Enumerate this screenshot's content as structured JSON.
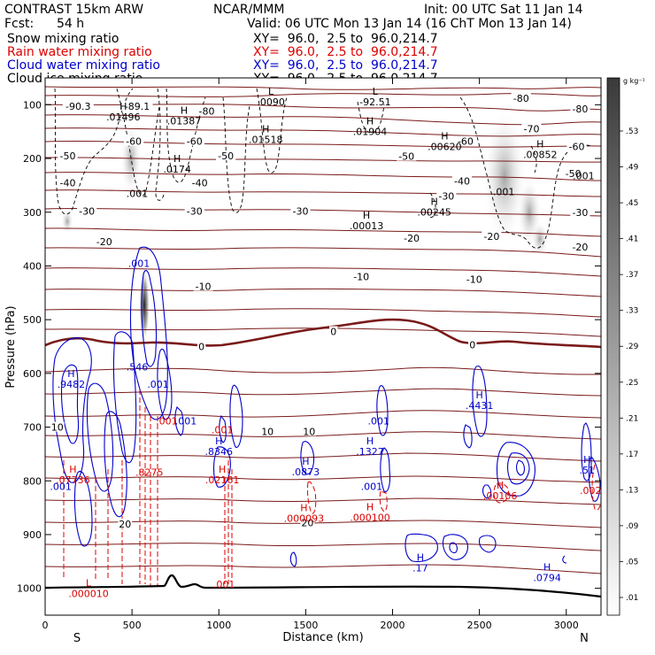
{
  "header": {
    "model": "CONTRAST 15km ARW",
    "org": "NCAR/MMM",
    "init": "Init: 00 UTC Sat 11 Jan 14",
    "fcst_label": "Fcst:",
    "fcst_value": "54 h",
    "valid": "Valid: 06 UTC Mon 13 Jan 14 (16 ChT Mon 13 Jan 14)"
  },
  "fields": [
    {
      "name": "Snow mixing ratio",
      "xy": "XY=  96.0,  2.5 to  96.0,214.7",
      "color": "#000000"
    },
    {
      "name": "Rain water mixing ratio",
      "xy": "XY=  96.0,  2.5 to  96.0,214.7",
      "color": "#dd0000"
    },
    {
      "name": "Cloud water mixing ratio",
      "xy": "XY=  96.0,  2.5 to  96.0,214.7",
      "color": "#0000cc"
    },
    {
      "name": "Cloud ice mixing ratio",
      "xy": "XY=  96.0,  2.5 to  96.0,214.7",
      "color": "#000000"
    }
  ],
  "colorbar": {
    "unit": "g kg⁻¹",
    "ticks": [
      ".01",
      ".05",
      ".09",
      ".13",
      ".17",
      ".21",
      ".25",
      ".29",
      ".33",
      ".37",
      ".41",
      ".45",
      ".49",
      ".53"
    ]
  },
  "chart_data": {
    "type": "contour",
    "xlabel": "Distance (km)",
    "ylabel": "Pressure (hPa)",
    "xlim": [
      0,
      3200
    ],
    "ylim": [
      1050,
      50
    ],
    "x_ticks": [
      "0",
      "500",
      "1000",
      "1500",
      "2000",
      "2500",
      "3000"
    ],
    "y_ticks": [
      "100",
      "200",
      "300",
      "400",
      "500",
      "600",
      "700",
      "800",
      "900",
      "1000"
    ],
    "x_ends": {
      "left": "S",
      "right": "N"
    },
    "temperature_labels": [
      {
        "text": "-90.3",
        "x": 190,
        "p": 103
      },
      {
        "text": "-89.1",
        "x": 530,
        "p": 103
      },
      {
        "text": "-80",
        "x": 930,
        "p": 112
      },
      {
        "text": "-80",
        "x": 2740,
        "p": 88
      },
      {
        "text": "-80",
        "x": 3080,
        "p": 108
      },
      {
        "text": "-70",
        "x": 2800,
        "p": 145
      },
      {
        "text": "-60",
        "x": 510,
        "p": 168
      },
      {
        "text": "-60",
        "x": 860,
        "p": 168
      },
      {
        "text": "-60",
        "x": 2420,
        "p": 168
      },
      {
        "text": "-60",
        "x": 3060,
        "p": 178
      },
      {
        "text": "-50",
        "x": 130,
        "p": 195
      },
      {
        "text": "-50",
        "x": 1040,
        "p": 195
      },
      {
        "text": "-50",
        "x": 2080,
        "p": 196
      },
      {
        "text": "-50",
        "x": 3040,
        "p": 228
      },
      {
        "text": "-40",
        "x": 130,
        "p": 245
      },
      {
        "text": "-40",
        "x": 890,
        "p": 245
      },
      {
        "text": "-40",
        "x": 2400,
        "p": 242
      },
      {
        "text": "-30",
        "x": 240,
        "p": 298
      },
      {
        "text": "-30",
        "x": 860,
        "p": 298
      },
      {
        "text": "-30",
        "x": 1470,
        "p": 298
      },
      {
        "text": "-30",
        "x": 2310,
        "p": 270
      },
      {
        "text": "-30",
        "x": 3080,
        "p": 300
      },
      {
        "text": "-20",
        "x": 340,
        "p": 355
      },
      {
        "text": "-20",
        "x": 2110,
        "p": 348
      },
      {
        "text": "-20",
        "x": 2570,
        "p": 345
      },
      {
        "text": "-20",
        "x": 3080,
        "p": 365
      },
      {
        "text": "-10",
        "x": 910,
        "p": 438
      },
      {
        "text": "-10",
        "x": 1820,
        "p": 420
      },
      {
        "text": "-10",
        "x": 2470,
        "p": 425
      },
      {
        "text": "0",
        "x": 900,
        "p": 550
      },
      {
        "text": "0",
        "x": 1660,
        "p": 522
      },
      {
        "text": "0",
        "x": 2460,
        "p": 547
      },
      {
        "text": "10",
        "x": 70,
        "p": 700
      },
      {
        "text": "10",
        "x": 1280,
        "p": 708
      },
      {
        "text": "10",
        "x": 1520,
        "p": 708
      },
      {
        "text": "20",
        "x": 460,
        "p": 880
      },
      {
        "text": "20",
        "x": 1510,
        "p": 878
      }
    ],
    "extrema": [
      {
        "type": "L",
        "x": 1300,
        "p": 85,
        "value": ".0090",
        "color": "#000000"
      },
      {
        "type": "L",
        "x": 1900,
        "p": 85,
        "value": "-92.51",
        "color": "#000000"
      },
      {
        "type": "H",
        "x": 450,
        "p": 113,
        "value": ".01496",
        "color": "#000000"
      },
      {
        "type": "H",
        "x": 800,
        "p": 120,
        "value": ".01387",
        "color": "#000000"
      },
      {
        "type": "H",
        "x": 1270,
        "p": 155,
        "value": ".01518",
        "color": "#000000"
      },
      {
        "type": "H",
        "x": 1870,
        "p": 140,
        "value": ".01904",
        "color": "#000000"
      },
      {
        "type": "H",
        "x": 2300,
        "p": 168,
        "value": ".00620",
        "color": "#000000"
      },
      {
        "type": "H",
        "x": 2850,
        "p": 183,
        "value": ".00852",
        "color": "#000000"
      },
      {
        "type": "H",
        "x": 760,
        "p": 210,
        "value": ".0174",
        "color": "#000000"
      },
      {
        "type": "H",
        "x": 2240,
        "p": 290,
        "value": ".00245",
        "color": "#000000"
      },
      {
        "type": "H",
        "x": 1850,
        "p": 315,
        "value": ".00013",
        "color": "#000000"
      },
      {
        "type": "H",
        "x": 150,
        "p": 610,
        "value": ".9482",
        "color": "#0000cc"
      },
      {
        "type": "H",
        "x": 1000,
        "p": 735,
        "value": ".8346",
        "color": "#0000cc"
      },
      {
        "type": "H",
        "x": 1500,
        "p": 773,
        "value": ".0873",
        "color": "#0000cc"
      },
      {
        "type": "H",
        "x": 1870,
        "p": 735,
        "value": ".1327",
        "color": "#0000cc"
      },
      {
        "type": "H",
        "x": 2500,
        "p": 650,
        "value": ".4431",
        "color": "#0000cc"
      },
      {
        "type": "H",
        "x": 2160,
        "p": 952,
        "value": ".17",
        "color": "#0000cc"
      },
      {
        "type": "H",
        "x": 2890,
        "p": 970,
        "value": ".0794",
        "color": "#0000cc"
      },
      {
        "type": "H",
        "x": 3120,
        "p": 770,
        "value": ".51",
        "color": "#0000cc"
      },
      {
        "type": "H",
        "x": 160,
        "p": 788,
        "value": ".07736",
        "color": "#dd0000"
      },
      {
        "type": "H",
        "x": 1020,
        "p": 788,
        "value": ".02161",
        "color": "#dd0000"
      },
      {
        "type": "H",
        "x": 1490,
        "p": 860,
        "value": ".000093",
        "color": "#dd0000"
      },
      {
        "type": "H",
        "x": 1870,
        "p": 858,
        "value": ".000100",
        "color": "#dd0000"
      },
      {
        "type": "H",
        "x": 2620,
        "p": 818,
        "value": ".00106",
        "color": "#dd0000"
      },
      {
        "type": "L",
        "x": 250,
        "p": 1000,
        "value": ".000010",
        "color": "#dd0000"
      }
    ],
    "value_labels": [
      {
        "text": ".001",
        "x": 540,
        "p": 395,
        "color": "#0000cc"
      },
      {
        "text": ".546",
        "x": 530,
        "p": 588,
        "color": "#0000cc"
      },
      {
        "text": ".001",
        "x": 650,
        "p": 620,
        "color": "#0000cc"
      },
      {
        "text": ".001",
        "x": 700,
        "p": 688,
        "color": "#dd0000"
      },
      {
        "text": ".001",
        "x": 810,
        "p": 688,
        "color": "#0000cc"
      },
      {
        "text": ".8275",
        "x": 600,
        "p": 784,
        "color": "#dd0000"
      },
      {
        "text": ".001",
        "x": 90,
        "p": 810,
        "color": "#0000cc"
      },
      {
        "text": ".001",
        "x": 1880,
        "p": 810,
        "color": "#0000cc"
      },
      {
        "text": ".001",
        "x": 1020,
        "p": 705,
        "color": "#dd0000"
      },
      {
        "text": ".001",
        "x": 1920,
        "p": 688,
        "color": "#0000cc"
      },
      {
        "text": ".001",
        "x": 1030,
        "p": 992,
        "color": "#dd0000"
      },
      {
        "text": ".001",
        "x": 530,
        "p": 265,
        "color": "#000000"
      },
      {
        "text": ".001",
        "x": 2640,
        "p": 262,
        "color": "#000000"
      },
      {
        "text": ".001",
        "x": 3100,
        "p": 232,
        "color": "#000000"
      },
      {
        "text": ".002",
        "x": 3140,
        "p": 818,
        "color": "#dd0000"
      }
    ]
  }
}
